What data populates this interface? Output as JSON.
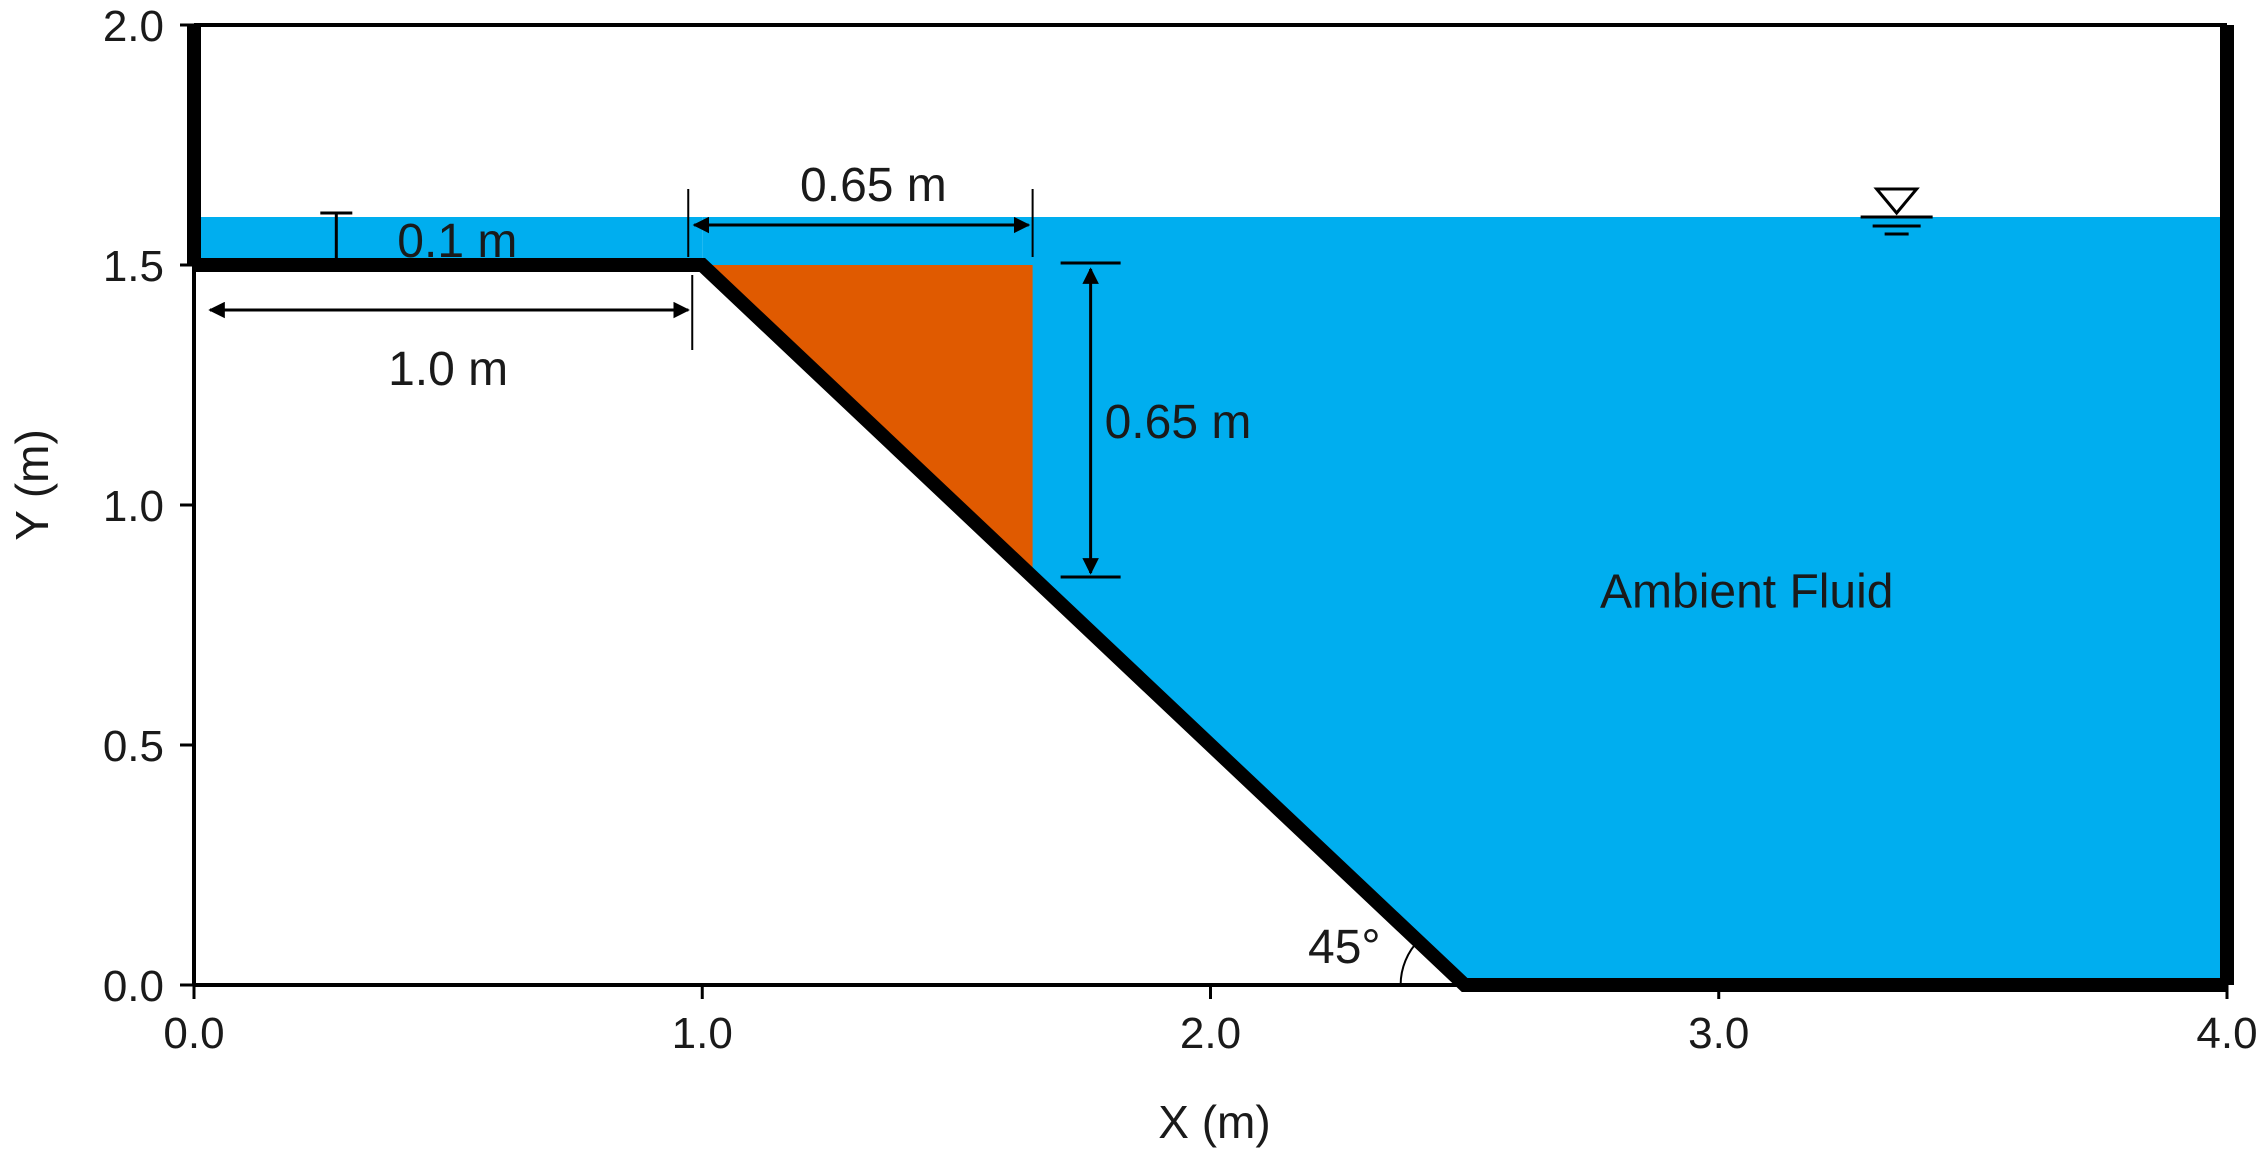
{
  "axes": {
    "xlabel": "X (m)",
    "ylabel": "Y (m)",
    "xlim": [
      0,
      4
    ],
    "ylim": [
      0,
      2
    ],
    "x_ticks": [
      "0.0",
      "1.0",
      "2.0",
      "3.0",
      "4.0"
    ],
    "y_ticks": [
      "0.0",
      "0.5",
      "1.0",
      "1.5",
      "2.0"
    ]
  },
  "geometry": {
    "shelf_height": 1.5,
    "slope_angle_deg": 45,
    "water_level": 1.6,
    "tank_width": 4.0,
    "tank_height": 2.0
  },
  "annotations": {
    "water_depth_label": "0.1 m",
    "shelf_length_label": "1.0 m",
    "slide_width_label": "0.65 m",
    "slide_height_label": "0.65 m",
    "angle_label": "45°",
    "ambient_label": "Ambient Fluid"
  },
  "colors": {
    "water": "#00aeef",
    "slide": "#e05a00",
    "walls": "#000000"
  },
  "icons": [
    "free-surface-icon"
  ]
}
